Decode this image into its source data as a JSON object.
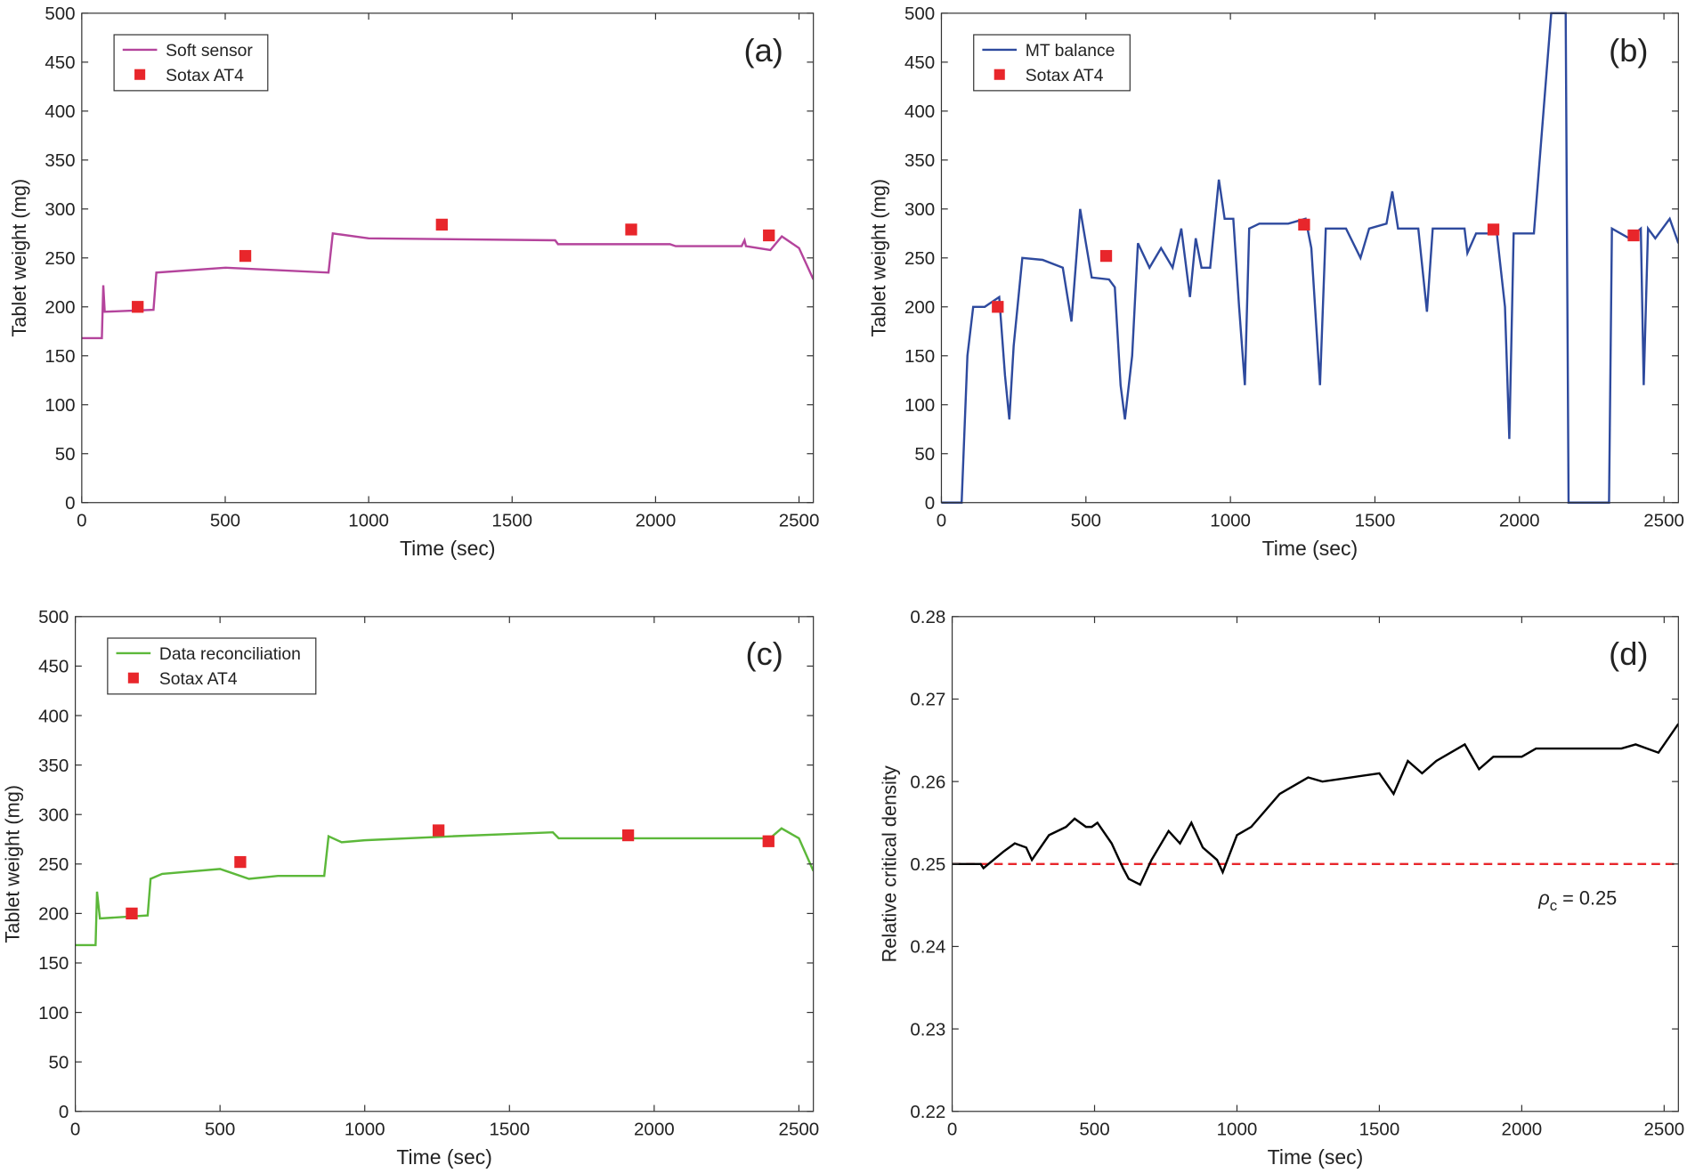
{
  "chart_data": [
    {
      "type": "line",
      "panel_label": "(a)",
      "xlabel": "Time (sec)",
      "ylabel": "Tablet weight (mg)",
      "xlim": [
        0,
        2550
      ],
      "ylim": [
        0,
        500
      ],
      "xticks": [
        0,
        500,
        1000,
        1500,
        2000,
        2500
      ],
      "yticks": [
        0,
        50,
        100,
        150,
        200,
        250,
        300,
        350,
        400,
        450,
        500
      ],
      "legend": "upper left",
      "series": [
        {
          "name": "Soft sensor",
          "color": "#b4449c",
          "style": "line",
          "x": [
            0,
            70,
            75,
            80,
            250,
            260,
            500,
            860,
            875,
            1000,
            1650,
            1660,
            2050,
            2070,
            2300,
            2310,
            2315,
            2400,
            2440,
            2500,
            2550
          ],
          "values": [
            168,
            168,
            222,
            195,
            197,
            235,
            240,
            235,
            275,
            270,
            268,
            264,
            264,
            262,
            262,
            268,
            262,
            258,
            272,
            260,
            228
          ]
        },
        {
          "name": "Sotax AT4",
          "color": "#e8262b",
          "style": "marker",
          "x": [
            195,
            570,
            1255,
            1915,
            2395
          ],
          "values": [
            200,
            252,
            284,
            279,
            273
          ]
        }
      ]
    },
    {
      "type": "line",
      "panel_label": "(b)",
      "xlabel": "Time (sec)",
      "ylabel": "Tablet weight (mg)",
      "xlim": [
        0,
        2550
      ],
      "ylim": [
        0,
        500
      ],
      "xticks": [
        0,
        500,
        1000,
        1500,
        2000,
        2500
      ],
      "yticks": [
        0,
        50,
        100,
        150,
        200,
        250,
        300,
        350,
        400,
        450,
        500
      ],
      "legend": "upper left",
      "series": [
        {
          "name": "MT balance",
          "color": "#2e4a9e",
          "style": "line",
          "x": [
            0,
            70,
            90,
            110,
            150,
            200,
            220,
            235,
            250,
            280,
            350,
            420,
            450,
            480,
            500,
            520,
            580,
            600,
            620,
            635,
            660,
            680,
            720,
            760,
            800,
            830,
            860,
            880,
            900,
            930,
            960,
            980,
            1010,
            1030,
            1050,
            1065,
            1100,
            1200,
            1260,
            1280,
            1310,
            1330,
            1400,
            1450,
            1480,
            1540,
            1560,
            1580,
            1650,
            1680,
            1700,
            1810,
            1820,
            1850,
            1900,
            1920,
            1950,
            1965,
            1980,
            2050,
            2110,
            2160,
            2170,
            2310,
            2320,
            2380,
            2420,
            2430,
            2445,
            2470,
            2520,
            2550
          ],
          "values": [
            0,
            0,
            150,
            200,
            200,
            210,
            130,
            85,
            160,
            250,
            248,
            240,
            185,
            300,
            265,
            230,
            228,
            220,
            120,
            85,
            150,
            265,
            240,
            260,
            240,
            280,
            210,
            270,
            240,
            240,
            330,
            290,
            290,
            200,
            120,
            280,
            285,
            285,
            290,
            260,
            120,
            280,
            280,
            250,
            280,
            285,
            318,
            280,
            280,
            195,
            280,
            280,
            255,
            275,
            275,
            280,
            200,
            65,
            275,
            275,
            500,
            500,
            0,
            0,
            280,
            270,
            280,
            120,
            280,
            270,
            290,
            265
          ]
        },
        {
          "name": "Sotax AT4",
          "color": "#e8262b",
          "style": "marker",
          "x": [
            195,
            570,
            1255,
            1910,
            2395
          ],
          "values": [
            200,
            252,
            284,
            279,
            273
          ]
        }
      ]
    },
    {
      "type": "line",
      "panel_label": "(c)",
      "xlabel": "Time (sec)",
      "ylabel": "Tablet weight (mg)",
      "xlim": [
        0,
        2550
      ],
      "ylim": [
        0,
        500
      ],
      "xticks": [
        0,
        500,
        1000,
        1500,
        2000,
        2500
      ],
      "yticks": [
        0,
        50,
        100,
        150,
        200,
        250,
        300,
        350,
        400,
        450,
        500
      ],
      "legend": "upper left",
      "series": [
        {
          "name": "Data reconciliation",
          "color": "#5cb83a",
          "style": "line",
          "x": [
            0,
            70,
            75,
            85,
            250,
            260,
            300,
            500,
            600,
            700,
            860,
            875,
            920,
            1000,
            1300,
            1650,
            1670,
            2300,
            2400,
            2440,
            2500,
            2550
          ],
          "values": [
            168,
            168,
            222,
            195,
            198,
            235,
            240,
            245,
            235,
            238,
            238,
            278,
            272,
            274,
            278,
            282,
            276,
            276,
            276,
            286,
            276,
            243
          ]
        },
        {
          "name": "Sotax AT4",
          "color": "#e8262b",
          "style": "marker",
          "x": [
            195,
            570,
            1255,
            1910,
            2395
          ],
          "values": [
            200,
            252,
            284,
            279,
            273
          ]
        }
      ]
    },
    {
      "type": "line",
      "panel_label": "(d)",
      "xlabel": "Time (sec)",
      "ylabel": "Relative critical density",
      "xlim": [
        0,
        2550
      ],
      "ylim": [
        0.22,
        0.28
      ],
      "xticks": [
        0,
        500,
        1000,
        1500,
        2000,
        2500
      ],
      "yticks": [
        0.22,
        0.23,
        0.24,
        0.25,
        0.26,
        0.27,
        0.28
      ],
      "reference_line": {
        "value": 0.25,
        "color": "#e8262b"
      },
      "annotation": {
        "symbol": "ρ",
        "subscript": "c",
        "text": " = 0.25"
      },
      "series": [
        {
          "color": "#000000",
          "style": "line",
          "x": [
            0,
            100,
            110,
            180,
            220,
            260,
            280,
            340,
            400,
            430,
            470,
            490,
            510,
            560,
            600,
            620,
            660,
            700,
            760,
            800,
            840,
            880,
            930,
            950,
            1000,
            1050,
            1150,
            1250,
            1300,
            1400,
            1500,
            1550,
            1600,
            1650,
            1700,
            1800,
            1850,
            1900,
            2000,
            2050,
            2350,
            2400,
            2480,
            2550
          ],
          "values": [
            0.25,
            0.25,
            0.2495,
            0.2515,
            0.2525,
            0.252,
            0.2505,
            0.2535,
            0.2545,
            0.2555,
            0.2545,
            0.2545,
            0.255,
            0.2525,
            0.2495,
            0.2482,
            0.2475,
            0.2505,
            0.254,
            0.2525,
            0.255,
            0.252,
            0.2505,
            0.249,
            0.2535,
            0.2545,
            0.2585,
            0.2605,
            0.26,
            0.2605,
            0.261,
            0.2585,
            0.2625,
            0.261,
            0.2625,
            0.2645,
            0.2615,
            0.263,
            0.263,
            0.264,
            0.264,
            0.2645,
            0.2635,
            0.267
          ]
        }
      ]
    }
  ]
}
